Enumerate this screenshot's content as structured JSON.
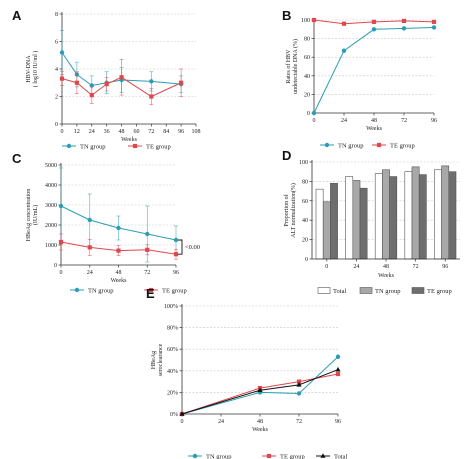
{
  "colors": {
    "tn": "#2a9db5",
    "te": "#e0474c",
    "total": "#111111",
    "grid": "#c8c8c8",
    "axis": "#333333",
    "bar_total": "#ffffff",
    "bar_tn": "#a8a8a8",
    "bar_te": "#6e6e6e"
  },
  "chart_data": [
    {
      "panel": "A",
      "type": "line",
      "xlabel": "Weeks",
      "ylabel": [
        "HBV-DNA",
        "( log10 IU/ml )"
      ],
      "xticks": [
        0,
        12,
        24,
        36,
        48,
        60,
        72,
        84,
        96,
        108
      ],
      "yticks": [
        0,
        2,
        4,
        6,
        8
      ],
      "xlim": [
        0,
        108
      ],
      "ylim": [
        0,
        8
      ],
      "series": [
        {
          "name": "TN group",
          "color": "tn",
          "marker": "circle",
          "x": [
            0,
            12,
            24,
            36,
            48,
            72,
            96
          ],
          "y": [
            5.2,
            3.6,
            2.8,
            3.0,
            3.2,
            3.1,
            2.9
          ],
          "err": [
            1.6,
            0.9,
            0.7,
            0.8,
            0.9,
            0.7,
            0.6
          ]
        },
        {
          "name": "TE group",
          "color": "te",
          "marker": "square",
          "x": [
            0,
            12,
            24,
            36,
            48,
            72,
            96
          ],
          "y": [
            3.3,
            3.0,
            2.1,
            2.9,
            3.4,
            2.0,
            3.0
          ],
          "err": [
            0.5,
            0.8,
            0.6,
            0.5,
            1.3,
            0.6,
            1.0
          ]
        }
      ],
      "legend": [
        "TN group",
        "TE group"
      ]
    },
    {
      "panel": "B",
      "type": "line",
      "xlabel": "Weeks",
      "ylabel": [
        "Rates of HBV",
        "undetectable DNA (%)"
      ],
      "xticks": [
        0,
        24,
        48,
        72,
        96
      ],
      "yticks": [
        0,
        20,
        40,
        60,
        80,
        100
      ],
      "xlim": [
        0,
        96
      ],
      "ylim": [
        0,
        100
      ],
      "series": [
        {
          "name": "TN group",
          "color": "tn",
          "marker": "circle",
          "x": [
            0,
            24,
            48,
            72,
            96
          ],
          "y": [
            0,
            67,
            90,
            91,
            92
          ]
        },
        {
          "name": "TE group",
          "color": "te",
          "marker": "square",
          "x": [
            0,
            24,
            48,
            72,
            96
          ],
          "y": [
            100,
            96,
            98,
            99,
            98
          ]
        }
      ],
      "legend": [
        "TN group",
        "TE group"
      ]
    },
    {
      "panel": "C",
      "type": "line",
      "xlabel": "Weeks",
      "ylabel": [
        "HBeAg concentration",
        "(IU/mL)"
      ],
      "xticks": [
        0,
        24,
        48,
        72,
        96
      ],
      "yticks": [
        0,
        1000,
        2000,
        3000,
        4000,
        5000
      ],
      "xlim": [
        0,
        96
      ],
      "ylim": [
        0,
        5000
      ],
      "series": [
        {
          "name": "TN group",
          "color": "tn",
          "marker": "circle",
          "x": [
            0,
            24,
            48,
            72,
            96
          ],
          "y": [
            2950,
            2250,
            1850,
            1550,
            1250
          ],
          "err": [
            1900,
            1300,
            600,
            1400,
            700
          ]
        },
        {
          "name": "TE group",
          "color": "te",
          "marker": "square",
          "x": [
            0,
            24,
            48,
            72,
            96
          ],
          "y": [
            1150,
            880,
            720,
            760,
            540
          ],
          "err": [
            400,
            400,
            250,
            250,
            250
          ]
        }
      ],
      "annotation": "<0.00",
      "legend": [
        "TN group",
        "TE group"
      ]
    },
    {
      "panel": "D",
      "type": "bar",
      "xlabel": "Weeks",
      "ylabel": [
        "Proportion of",
        "ALT normalization(%)"
      ],
      "categories": [
        "0",
        "24",
        "48",
        "72",
        "96"
      ],
      "yticks": [
        0,
        20,
        40,
        60,
        80,
        100
      ],
      "ylim": [
        0,
        100
      ],
      "series": [
        {
          "name": "Total",
          "color": "bar_total",
          "values": [
            72,
            85,
            88,
            90,
            92
          ]
        },
        {
          "name": "TN group",
          "color": "bar_tn",
          "values": [
            59,
            81,
            92,
            95,
            96
          ]
        },
        {
          "name": "TE group",
          "color": "bar_te",
          "values": [
            78,
            73,
            85,
            87,
            90
          ]
        }
      ],
      "legend": [
        "Total",
        "TN group",
        "TE group"
      ]
    },
    {
      "panel": "E",
      "type": "line",
      "xlabel": "Weeks",
      "ylabel": [
        "HBeAg",
        "seroclearance"
      ],
      "xticks": [
        0,
        24,
        48,
        72,
        96
      ],
      "yticks": [
        "0%",
        "20%",
        "40%",
        "60%",
        "80%",
        "100%"
      ],
      "xlim": [
        0,
        96
      ],
      "ylim": [
        0,
        100
      ],
      "series": [
        {
          "name": "TN group",
          "color": "tn",
          "marker": "circle",
          "x": [
            0,
            48,
            72,
            96
          ],
          "y": [
            0,
            20,
            19,
            53
          ]
        },
        {
          "name": "TE group",
          "color": "te",
          "marker": "square",
          "x": [
            0,
            48,
            72,
            96
          ],
          "y": [
            0,
            24,
            30,
            37
          ]
        },
        {
          "name": "Total",
          "color": "total",
          "marker": "triangle",
          "x": [
            0,
            48,
            72,
            96
          ],
          "y": [
            0,
            22,
            27,
            41
          ]
        }
      ],
      "legend": [
        "TN group",
        "TE group",
        "Total"
      ]
    }
  ]
}
